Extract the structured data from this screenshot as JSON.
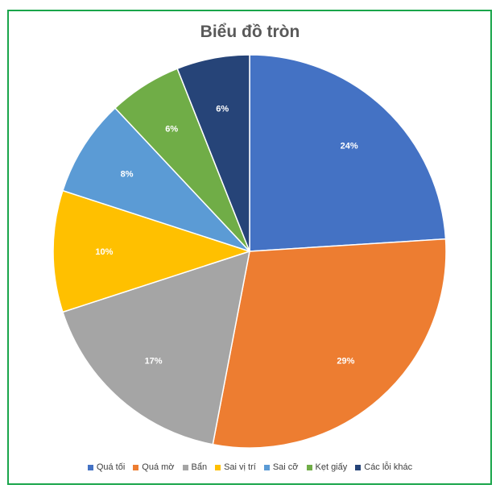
{
  "chart_data": {
    "type": "pie",
    "title": "Biểu đồ tròn",
    "categories": [
      "Quá tối",
      "Quá mờ",
      "Bẩn",
      "Sai vị trí",
      "Sai cỡ",
      "Kẹt giấy",
      "Các lỗi khác"
    ],
    "values": [
      24,
      29,
      17,
      10,
      8,
      6,
      6
    ],
    "labels": [
      "24%",
      "29%",
      "17%",
      "10%",
      "8%",
      "6%",
      "6%"
    ],
    "colors": [
      "#4472c4",
      "#ed7d31",
      "#a5a5a5",
      "#ffc000",
      "#5b9bd5",
      "#70ad47",
      "#264478"
    ],
    "legend": "bottom",
    "start": "12 o'clock",
    "direction": "clockwise"
  }
}
